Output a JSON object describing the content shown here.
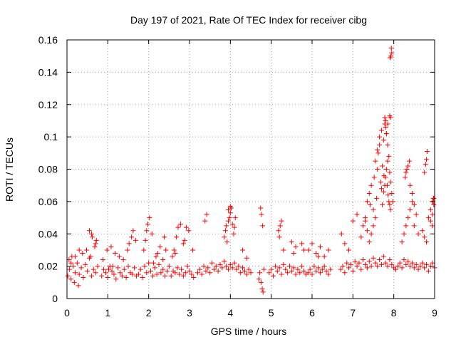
{
  "chart_data": {
    "type": "scatter",
    "title": "Day 197 of 2021, Rate Of TEC Index for receiver cibg",
    "xlabel": "GPS time / hours",
    "ylabel": "ROTI / TECUs",
    "xlim": [
      0,
      9
    ],
    "ylim": [
      0,
      0.16
    ],
    "x_ticks": [
      0,
      1,
      2,
      3,
      4,
      5,
      6,
      7,
      8,
      9
    ],
    "y_ticks": [
      0,
      0.02,
      0.04,
      0.06,
      0.08,
      0.1,
      0.12,
      0.14,
      0.16
    ],
    "y_tick_labels": [
      "0",
      "0.02",
      "0.04",
      "0.06",
      "0.08",
      "0.1",
      "0.12",
      "0.14",
      "0.16"
    ],
    "grid": true,
    "marker": "+",
    "color": "#ff0000",
    "series": [
      {
        "name": "ROTI",
        "x": [
          0.02,
          0.06,
          0.1,
          0.15,
          0.2,
          0.25,
          0.3,
          0.35,
          0.4,
          0.45,
          0.5,
          0.55,
          0.6,
          0.65,
          0.7,
          0.75,
          0.05,
          0.12,
          0.18,
          0.28,
          0.38,
          0.48,
          0.58,
          0.68,
          0.72,
          0.55,
          0.6,
          0.62,
          0.7,
          0.3,
          0.2,
          0.1,
          0.85,
          0.9,
          0.95,
          1.0,
          1.05,
          1.1,
          1.15,
          1.2,
          1.25,
          1.3,
          1.35,
          1.4,
          1.45,
          1.5,
          1.55,
          1.6,
          1.65,
          1.7,
          0.88,
          0.98,
          1.08,
          1.18,
          1.28,
          1.38,
          1.48,
          1.52,
          1.58,
          1.62,
          1.68,
          1.12,
          1.02,
          1.75,
          1.8,
          1.85,
          1.9,
          1.95,
          2.0,
          2.05,
          2.1,
          2.15,
          2.2,
          2.25,
          2.3,
          2.35,
          2.4,
          2.45,
          2.5,
          1.88,
          1.92,
          1.95,
          1.98,
          2.02,
          2.08,
          2.18,
          2.28,
          2.38,
          2.42,
          2.35,
          2.22,
          2.12,
          2.55,
          2.6,
          2.65,
          2.7,
          2.75,
          2.8,
          2.85,
          2.9,
          2.95,
          3.0,
          3.05,
          3.1,
          2.58,
          2.62,
          2.68,
          2.72,
          2.78,
          2.88,
          2.98,
          3.08,
          2.92,
          2.65,
          2.85,
          3.2,
          3.25,
          3.3,
          3.35,
          3.4,
          3.45,
          3.5,
          3.55,
          3.6,
          3.65,
          3.7,
          3.75,
          3.8,
          3.85,
          3.9,
          3.95,
          4.0,
          4.05,
          4.1,
          4.15,
          4.2,
          4.25,
          4.3,
          4.35,
          4.4,
          4.45,
          4.5,
          3.38,
          3.42,
          3.9,
          3.95,
          3.98,
          4.0,
          4.02,
          4.05,
          3.88,
          3.85,
          3.92,
          4.08,
          4.1,
          4.12,
          3.95,
          4.0,
          4.3,
          4.4,
          4.7,
          4.72,
          4.75,
          4.78,
          4.8,
          4.82,
          4.76,
          4.74,
          4.79,
          4.95,
          5.0,
          5.05,
          5.1,
          5.15,
          5.2,
          5.25,
          5.3,
          5.35,
          5.4,
          5.45,
          5.5,
          5.55,
          5.6,
          5.65,
          5.7,
          5.75,
          5.8,
          5.85,
          5.18,
          5.22,
          5.25,
          5.3,
          5.5,
          5.55,
          5.6,
          5.75,
          5.8,
          5.2,
          5.9,
          5.95,
          6.0,
          6.05,
          6.1,
          6.15,
          6.2,
          6.25,
          6.3,
          6.35,
          6.4,
          6.45,
          5.92,
          6.0,
          6.1,
          6.2,
          6.3,
          6.4,
          6.15,
          6.7,
          6.75,
          6.8,
          6.85,
          6.9,
          6.95,
          7.0,
          7.05,
          7.1,
          7.15,
          7.2,
          7.25,
          7.3,
          7.35,
          7.4,
          7.45,
          7.5,
          7.55,
          7.6,
          7.65,
          7.7,
          7.75,
          7.8,
          7.85,
          7.9,
          7.95,
          8.0,
          6.72,
          6.8,
          6.9,
          7.0,
          7.1,
          7.2,
          7.25,
          7.3,
          7.35,
          7.4,
          7.42,
          7.45,
          7.5,
          7.52,
          7.55,
          7.58,
          7.6,
          7.62,
          7.65,
          7.68,
          7.7,
          7.72,
          7.75,
          7.78,
          7.8,
          7.82,
          7.85,
          7.88,
          7.9,
          7.92,
          7.6,
          7.65,
          7.7,
          7.75,
          7.78,
          7.8,
          7.82,
          7.85,
          7.88,
          7.9,
          7.92,
          7.95,
          7.98,
          7.55,
          7.5,
          7.45,
          7.4,
          7.35,
          7.3,
          7.72,
          7.76,
          7.84,
          7.86,
          7.78,
          7.8,
          7.82,
          7.85,
          7.9,
          7.92,
          7.93,
          7.95,
          7.94,
          7.91,
          8.05,
          8.1,
          8.15,
          8.2,
          8.25,
          8.3,
          8.35,
          8.4,
          8.45,
          8.5,
          8.55,
          8.6,
          8.65,
          8.7,
          8.75,
          8.8,
          8.85,
          8.9,
          8.95,
          9.0,
          8.2,
          8.25,
          8.3,
          8.35,
          8.4,
          8.45,
          8.5,
          8.6,
          8.7,
          8.75,
          8.8,
          8.85,
          8.9,
          8.95,
          8.98,
          8.28,
          8.3,
          8.32,
          8.35,
          8.38,
          8.4,
          8.45,
          8.5,
          8.55,
          8.75,
          8.78,
          8.8,
          8.82,
          8.9,
          8.95,
          8.98,
          8.96,
          8.97,
          8.94
        ],
        "y": [
          0.014,
          0.018,
          0.012,
          0.02,
          0.016,
          0.022,
          0.015,
          0.019,
          0.013,
          0.021,
          0.017,
          0.025,
          0.014,
          0.018,
          0.016,
          0.02,
          0.024,
          0.026,
          0.01,
          0.008,
          0.028,
          0.03,
          0.026,
          0.032,
          0.036,
          0.042,
          0.04,
          0.038,
          0.034,
          0.03,
          0.026,
          0.022,
          0.014,
          0.018,
          0.016,
          0.013,
          0.02,
          0.017,
          0.015,
          0.012,
          0.019,
          0.016,
          0.014,
          0.018,
          0.013,
          0.02,
          0.016,
          0.015,
          0.019,
          0.014,
          0.024,
          0.03,
          0.032,
          0.028,
          0.026,
          0.024,
          0.03,
          0.034,
          0.038,
          0.042,
          0.036,
          0.02,
          0.018,
          0.015,
          0.018,
          0.013,
          0.02,
          0.016,
          0.022,
          0.017,
          0.014,
          0.019,
          0.015,
          0.021,
          0.016,
          0.018,
          0.014,
          0.017,
          0.02,
          0.03,
          0.036,
          0.042,
          0.046,
          0.05,
          0.04,
          0.026,
          0.032,
          0.038,
          0.03,
          0.024,
          0.028,
          0.022,
          0.014,
          0.017,
          0.016,
          0.019,
          0.015,
          0.018,
          0.014,
          0.016,
          0.02,
          0.017,
          0.015,
          0.013,
          0.026,
          0.03,
          0.038,
          0.044,
          0.046,
          0.036,
          0.042,
          0.03,
          0.044,
          0.028,
          0.034,
          0.016,
          0.018,
          0.015,
          0.02,
          0.017,
          0.019,
          0.016,
          0.022,
          0.018,
          0.02,
          0.017,
          0.021,
          0.019,
          0.023,
          0.02,
          0.018,
          0.021,
          0.019,
          0.022,
          0.018,
          0.02,
          0.016,
          0.019,
          0.017,
          0.015,
          0.018,
          0.016,
          0.048,
          0.052,
          0.045,
          0.048,
          0.05,
          0.053,
          0.056,
          0.046,
          0.042,
          0.038,
          0.035,
          0.04,
          0.044,
          0.05,
          0.055,
          0.057,
          0.03,
          0.025,
          0.012,
          0.016,
          0.01,
          0.006,
          0.004,
          0.018,
          0.052,
          0.056,
          0.045,
          0.016,
          0.018,
          0.014,
          0.02,
          0.017,
          0.019,
          0.015,
          0.021,
          0.018,
          0.016,
          0.02,
          0.017,
          0.019,
          0.015,
          0.018,
          0.016,
          0.02,
          0.017,
          0.015,
          0.042,
          0.045,
          0.048,
          0.03,
          0.035,
          0.028,
          0.032,
          0.034,
          0.03,
          0.038,
          0.016,
          0.018,
          0.015,
          0.02,
          0.017,
          0.019,
          0.016,
          0.018,
          0.02,
          0.017,
          0.015,
          0.018,
          0.03,
          0.034,
          0.028,
          0.032,
          0.026,
          0.03,
          0.026,
          0.018,
          0.02,
          0.016,
          0.022,
          0.019,
          0.021,
          0.017,
          0.023,
          0.02,
          0.022,
          0.018,
          0.024,
          0.021,
          0.019,
          0.023,
          0.02,
          0.025,
          0.022,
          0.02,
          0.024,
          0.021,
          0.026,
          0.022,
          0.02,
          0.024,
          0.021,
          0.019,
          0.04,
          0.034,
          0.03,
          0.048,
          0.052,
          0.038,
          0.045,
          0.05,
          0.06,
          0.065,
          0.058,
          0.07,
          0.055,
          0.075,
          0.085,
          0.062,
          0.08,
          0.09,
          0.095,
          0.072,
          0.068,
          0.058,
          0.066,
          0.07,
          0.075,
          0.08,
          0.085,
          0.06,
          0.058,
          0.055,
          0.092,
          0.1,
          0.104,
          0.098,
          0.108,
          0.11,
          0.102,
          0.095,
          0.088,
          0.078,
          0.072,
          0.065,
          0.06,
          0.05,
          0.045,
          0.04,
          0.035,
          0.042,
          0.048,
          0.082,
          0.076,
          0.07,
          0.064,
          0.112,
          0.106,
          0.102,
          0.108,
          0.113,
          0.112,
          0.15,
          0.152,
          0.155,
          0.149,
          0.018,
          0.02,
          0.022,
          0.019,
          0.024,
          0.021,
          0.023,
          0.02,
          0.022,
          0.019,
          0.021,
          0.018,
          0.02,
          0.022,
          0.019,
          0.021,
          0.017,
          0.02,
          0.022,
          0.019,
          0.035,
          0.04,
          0.045,
          0.05,
          0.055,
          0.06,
          0.045,
          0.04,
          0.042,
          0.038,
          0.035,
          0.05,
          0.055,
          0.06,
          0.062,
          0.075,
          0.078,
          0.08,
          0.082,
          0.085,
          0.07,
          0.065,
          0.058,
          0.052,
          0.078,
          0.083,
          0.086,
          0.091,
          0.048,
          0.052,
          0.058,
          0.06,
          0.062,
          0.045
        ]
      }
    ]
  }
}
